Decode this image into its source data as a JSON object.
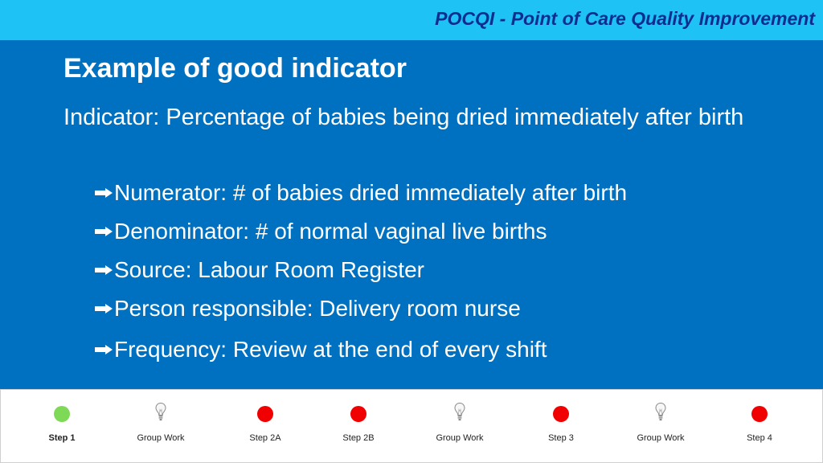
{
  "header": {
    "brand": "POCQI - Point of Care Quality Improvement"
  },
  "slide": {
    "title": "Example of good indicator",
    "lead": "Indicator: Percentage of babies being dried immediately after birth",
    "bullets": [
      "Numerator: # of babies dried immediately after birth",
      "Denominator: # of normal vaginal live births",
      "Source: Labour Room Register",
      "Person responsible: Delivery room nurse",
      "Frequency: Review at the end of every shift"
    ]
  },
  "steps": [
    {
      "label": "Step 1",
      "marker": "green-dot",
      "active": true
    },
    {
      "label": "Group Work",
      "marker": "lightbulb-icon"
    },
    {
      "label": "Step 2A",
      "marker": "red-dot"
    },
    {
      "label": "Step 2B",
      "marker": "red-dot"
    },
    {
      "label": "Group Work",
      "marker": "lightbulb-icon"
    },
    {
      "label": "Step 3",
      "marker": "red-dot"
    },
    {
      "label": "Group Work",
      "marker": "lightbulb-icon"
    },
    {
      "label": "Step 4",
      "marker": "red-dot"
    }
  ],
  "colors": {
    "header_bg": "#1fc2f5",
    "brand_text": "#0d2d8f",
    "slide_bg": "#0070c0",
    "active_dot": "#7ed957",
    "pending_dot": "#f00000"
  }
}
